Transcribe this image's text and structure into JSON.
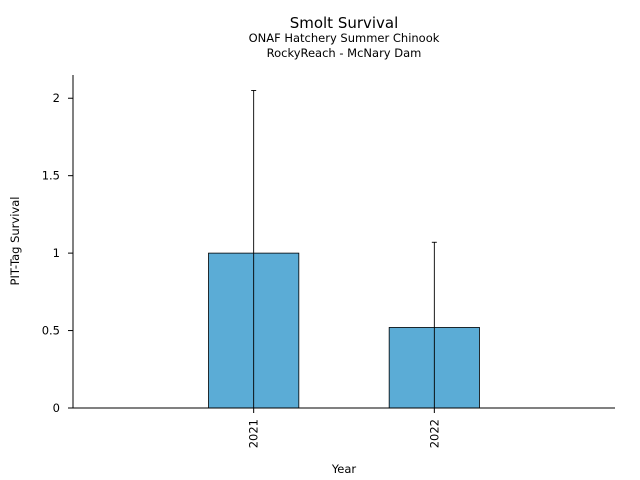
{
  "chart_data": {
    "type": "bar",
    "title": "Smolt Survival",
    "subtitle_lines": [
      "ONAF Hatchery Summer Chinook",
      "RockyReach - McNary Dam"
    ],
    "xlabel": "Year",
    "ylabel": "PIT-Tag Survival",
    "categories": [
      "2021",
      "2022"
    ],
    "values": [
      1.0,
      0.52
    ],
    "error_upper": [
      2.05,
      1.07
    ],
    "error_lower": [
      0.0,
      0.0
    ],
    "ylim": [
      0,
      2.15
    ],
    "yticks": [
      0,
      0.5,
      1,
      1.5,
      2
    ],
    "ytick_labels": [
      "0",
      "0.5",
      "1",
      "1.5",
      "2"
    ],
    "bar_color": "#5bacd6",
    "bar_edge_color": "#000000",
    "grid": false,
    "legend": "none"
  }
}
